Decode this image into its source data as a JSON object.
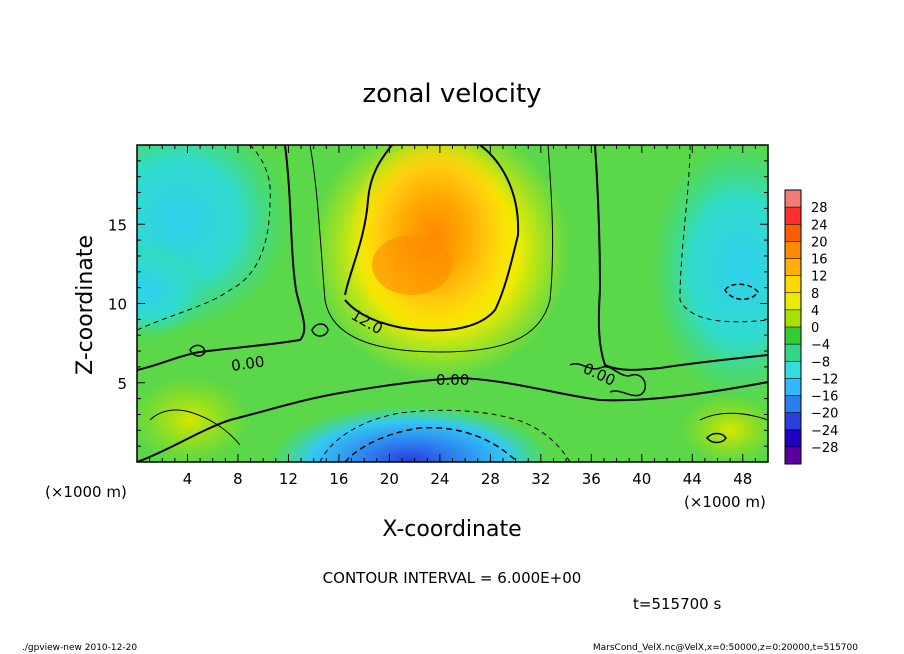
{
  "chart_data": {
    "type": "heatmap",
    "title": "zonal velocity",
    "xlabel": "X-coordinate",
    "ylabel": "Z-coordinate",
    "x_unit_label": "(×1000 m)",
    "y_unit_label": "(×1000 m)",
    "xlim": [
      0,
      50
    ],
    "ylim": [
      0,
      20
    ],
    "x_ticks": [
      4,
      8,
      12,
      16,
      20,
      24,
      28,
      32,
      36,
      40,
      44,
      48
    ],
    "y_ticks": [
      5,
      10,
      15
    ],
    "colorbar": {
      "labels": [
        "28",
        "24",
        "20",
        "16",
        "12",
        "8",
        "4",
        "0",
        "−4",
        "−8",
        "−12",
        "−16",
        "−20",
        "−24",
        "−28"
      ],
      "levels": [
        30,
        26,
        22,
        18,
        14,
        10,
        6,
        2,
        -2,
        -6,
        -10,
        -14,
        -18,
        -22,
        -26,
        -30
      ],
      "colors": [
        "#f47a7a",
        "#ff3030",
        "#ff5e00",
        "#ff8c00",
        "#ffb000",
        "#ffd800",
        "#e8ec00",
        "#a8e000",
        "#33cc33",
        "#33d488",
        "#33dddd",
        "#33b8ff",
        "#2f7cf0",
        "#2a3fdc",
        "#2200c0",
        "#5a009c"
      ]
    },
    "contour_labels": [
      "0.00",
      "12.0",
      "0.00",
      "0.00"
    ],
    "contour_interval_text": "CONTOUR INTERVAL = 6.000E+00"
  },
  "time_text": "t=515700 s",
  "footer_left": "./gpview-new  2010-12-20",
  "footer_right": "MarsCond_VelX.nc@VelX,x=0:50000,z=0:20000,t=515700"
}
